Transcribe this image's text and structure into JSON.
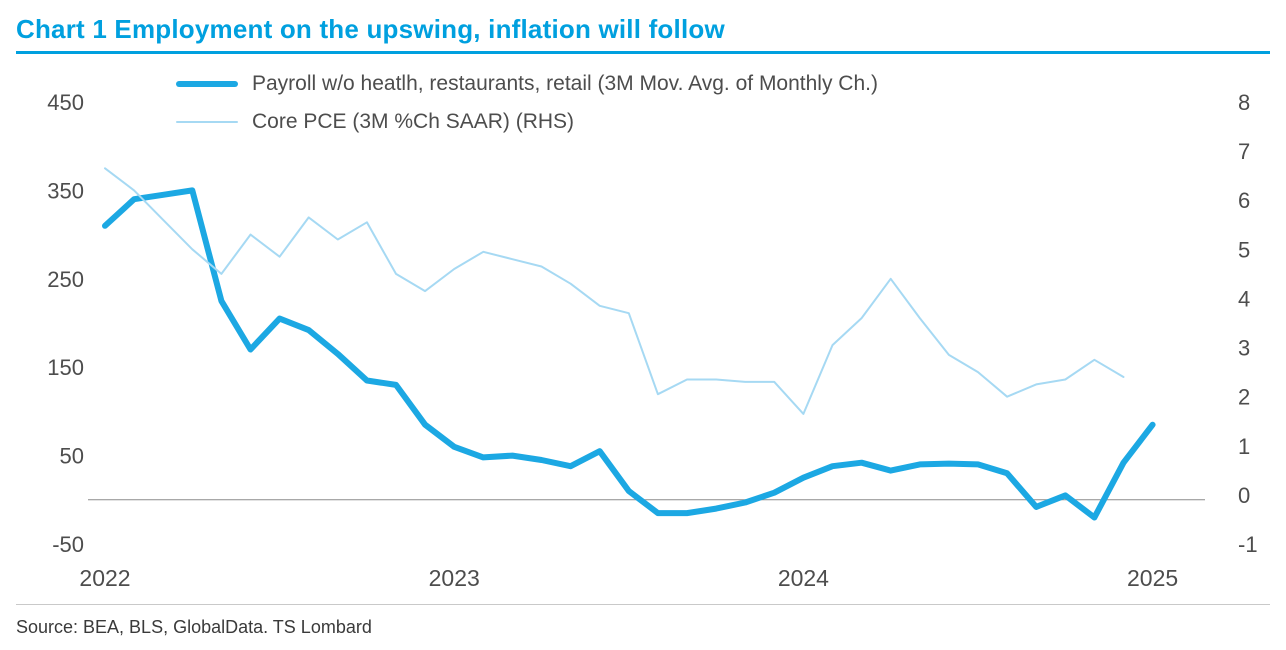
{
  "title": "Chart 1 Employment on the upswing, inflation will follow",
  "source": "Source: BEA, BLS, GlobalData. TS Lombard",
  "colors": {
    "accent": "#00A0DF",
    "payroll_line": "#1CA8E3",
    "pce_line": "#A6D9F3",
    "axis_text": "#4d4d4d",
    "zero_line": "#8c8c8c"
  },
  "chart_data": {
    "type": "line",
    "title": "Chart 1 Employment on the upswing, inflation will follow",
    "x_ticks": [
      "2022",
      "2023",
      "2024",
      "2025"
    ],
    "left_axis": {
      "ticks": [
        450,
        350,
        250,
        150,
        50,
        -50
      ],
      "range": [
        -50,
        450
      ]
    },
    "right_axis": {
      "ticks": [
        8,
        7,
        6,
        5,
        4,
        3,
        2,
        1,
        0,
        -1
      ],
      "range": [
        -1,
        8
      ]
    },
    "grid": false,
    "legend_position": "top-left",
    "x_start": "2022-01",
    "x_frequency": "monthly",
    "series": [
      {
        "name": "Payroll w/o heatlh, restaurants, retail (3M Mov. Avg. of Monthly Ch.)",
        "axis": "left",
        "color": "#1CA8E3",
        "line_width": 6,
        "values": [
          310,
          340,
          345,
          350,
          225,
          170,
          205,
          192,
          165,
          135,
          130,
          85,
          60,
          48,
          50,
          45,
          38,
          55,
          10,
          -15,
          -15,
          -10,
          -3,
          8,
          25,
          38,
          42,
          33,
          40,
          41,
          40,
          30,
          -8,
          5,
          -20,
          42,
          85
        ]
      },
      {
        "name": "Core PCE (3M %Ch SAAR) (RHS)",
        "axis": "right",
        "color": "#A6D9F3",
        "line_width": 2,
        "values": [
          6.65,
          6.2,
          5.6,
          5.0,
          4.5,
          5.3,
          4.85,
          5.65,
          5.2,
          5.55,
          4.5,
          4.15,
          4.6,
          4.95,
          4.8,
          4.65,
          4.3,
          3.85,
          3.7,
          2.05,
          2.35,
          2.35,
          2.3,
          2.3,
          1.65,
          3.05,
          3.6,
          4.4,
          3.6,
          2.85,
          2.5,
          2.0,
          2.25,
          2.35,
          2.75,
          2.4
        ]
      }
    ]
  }
}
